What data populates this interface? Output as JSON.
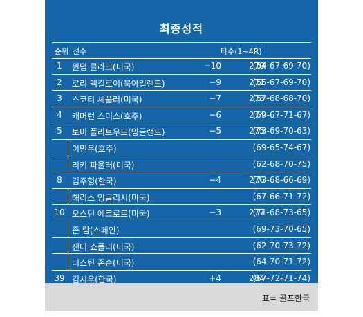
{
  "title": "최종성적",
  "headers": {
    "rank": "순위",
    "player": "선수",
    "score": "타수(1~4R)"
  },
  "rows": [
    {
      "rank": "1",
      "player": "윈덤 클라크(미국)",
      "par": "−10",
      "total": "270",
      "rounds": "(64-67-69-70)"
    },
    {
      "rank": "2",
      "player": "로리 맥길로이(북아일랜드)",
      "par": "−9",
      "total": "271",
      "rounds": "(65-67-69-70)"
    },
    {
      "rank": "3",
      "player": "스코티 셰플러(미국)",
      "par": "−7",
      "total": "273",
      "rounds": "(67-68-68-70)"
    },
    {
      "rank": "4",
      "player": "캐머런 스미스(호주)",
      "par": "−6",
      "total": "274",
      "rounds": "(69-67-71-67)"
    },
    {
      "rank": "5",
      "player": "토미 플리트우드(잉글랜드)",
      "par": "−5",
      "total": "275",
      "rounds": "(73-69-70-63)"
    },
    {
      "rank": "",
      "player": "이민우(호주)",
      "par": "",
      "total": "",
      "rounds": "(69-65-74-67)"
    },
    {
      "rank": "",
      "player": "리키 파울러(미국)",
      "par": "",
      "total": "",
      "rounds": "(62-68-70-75)"
    },
    {
      "rank": "8",
      "player": "김주형(한국)",
      "par": "−4",
      "total": "276",
      "rounds": "(73-68-66-69)"
    },
    {
      "rank": "",
      "player": "해리스 잉글리시(미국)",
      "par": "",
      "total": "",
      "rounds": "(67-66-71-72)"
    },
    {
      "rank": "10",
      "player": "오스틴 에크로트(미국)",
      "par": "−3",
      "total": "277",
      "rounds": "(71-68-73-65)"
    },
    {
      "rank": "",
      "player": "존 람(스페인)",
      "par": "",
      "total": "",
      "rounds": "(69-73-70-65)"
    },
    {
      "rank": "",
      "player": "잰더 쇼플리(미국)",
      "par": "",
      "total": "",
      "rounds": "(62-70-73-72)"
    },
    {
      "rank": "",
      "player": "더스틴 존슨(미국)",
      "par": "",
      "total": "",
      "rounds": "(64-70-71-72)"
    },
    {
      "rank": "39",
      "player": "김시우(한국)",
      "par": "+4",
      "total": "284",
      "rounds": "(67-72-71-74)"
    }
  ],
  "source": "표= 골프한국",
  "colors": {
    "panel": "#1565a9",
    "text": "#ffffff",
    "source_bar": "#d9d9d9"
  }
}
